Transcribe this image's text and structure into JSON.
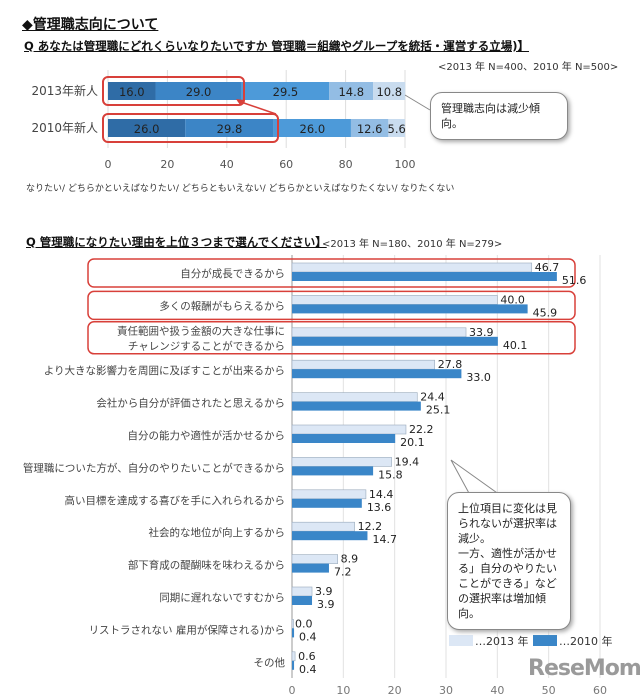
{
  "title": "◆管理職志向について",
  "chart_data": [
    {
      "type": "bar",
      "stacked": true,
      "orientation": "horizontal",
      "title": "Q あなたは管理職にどれくらいなりたいですか 管理職＝組織やグループを統括・運営する立場)】",
      "sample_note": "<2013 年 N=400、2010 年 N=500>",
      "categories": [
        "2013年新人",
        "2010年新人"
      ],
      "series": [
        {
          "name": "なりたい",
          "values": [
            16.0,
            26.0
          ],
          "color": "#2f6ca6"
        },
        {
          "name": "どちらかといえばなりたい",
          "values": [
            29.0,
            29.8
          ],
          "color": "#3c85c6"
        },
        {
          "name": "どちらともいえない",
          "values": [
            29.5,
            26.0
          ],
          "color": "#4d9ad9"
        },
        {
          "name": "どちらかといえばなりたくない",
          "values": [
            14.8,
            12.6
          ],
          "color": "#93bde4"
        },
        {
          "name": "なりたくない",
          "values": [
            10.8,
            5.6
          ],
          "color": "#c9dcef"
        }
      ],
      "legend_text": "なりたい/ どちらかといえばなりたい/ どちらともいえない/ どちらかといえばなりたくない/ なりたくない",
      "xlim": [
        0,
        100
      ],
      "xticks": [
        0,
        20,
        40,
        60,
        80,
        100
      ],
      "grid": true,
      "callout": "管理職志向は減少傾向。"
    },
    {
      "type": "bar",
      "orientation": "horizontal",
      "title": "Q 管理職になりたい理由を上位３つまで選んでください】",
      "sample_note": "<2013 年 N=180、2010 年 N=279>",
      "categories": [
        "自分が成長できるから",
        "多くの報酬がもらえるから",
        "責任範囲や扱う金額の大きな仕事に\nチャレンジすることができるから",
        "より大きな影響力を周囲に及ぼすことが出来るから",
        "会社から自分が評価されたと思えるから",
        "自分の能力や適性が活かせるから",
        "管理職についた方が、自分のやりたいことができるから",
        "高い目標を達成する喜びを手に入れられるから",
        "社会的な地位が向上するから",
        "部下育成の醍醐味を味わえるから",
        "同期に遅れないですむから",
        "リストラされない 雇用が保障される)から",
        "その他"
      ],
      "series": [
        {
          "name": "…2013 年",
          "values": [
            46.7,
            40.0,
            33.9,
            27.8,
            24.4,
            22.2,
            19.4,
            14.4,
            12.2,
            8.9,
            3.9,
            0.0,
            0.6
          ],
          "color": "#dce7f5"
        },
        {
          "name": "…2010 年",
          "values": [
            51.6,
            45.9,
            40.1,
            33.0,
            25.1,
            20.1,
            15.8,
            13.6,
            14.7,
            7.2,
            3.9,
            0.4,
            0.4
          ],
          "color": "#3a86c8"
        }
      ],
      "xlim": [
        0,
        60
      ],
      "xticks": [
        0,
        10,
        20,
        30,
        40,
        50,
        60
      ],
      "grid": true,
      "legend_position": "bottom-right",
      "highlighted_rows": [
        0,
        1,
        2
      ],
      "callout": "上位項目に変化は見られないが選択率は減少。\n一方、適性が活かせる」自分のやりたいことができる」などの選択率は増加傾向。"
    }
  ],
  "logo": "ReseMom"
}
